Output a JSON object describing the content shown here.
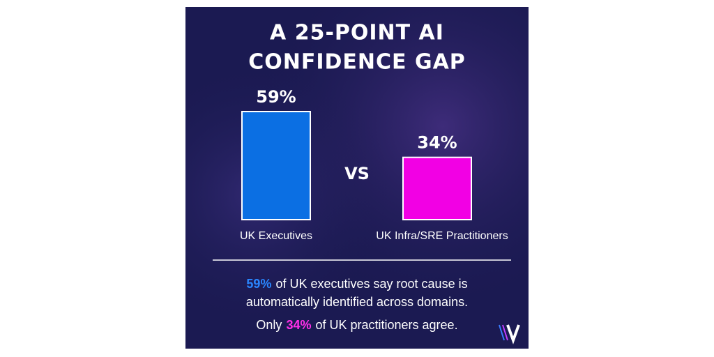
{
  "chart_data": {
    "type": "bar",
    "title": [
      "A 25-POINT AI",
      "CONFIDENCE GAP"
    ],
    "categories": [
      "UK Executives",
      "UK Infra/SRE Practitioners"
    ],
    "values": [
      59,
      34
    ],
    "value_labels": [
      "59%",
      "34%"
    ],
    "colors": [
      "#0b6fe3",
      "#f200e4"
    ],
    "separator": "VS",
    "footer": {
      "line1_highlight": "59%",
      "line1_rest": "of UK executives say root cause is",
      "line2": "automatically identified across domains.",
      "line3_start": "Only",
      "line3_highlight": "34%",
      "line3_rest": "of UK practitioners agree."
    }
  }
}
